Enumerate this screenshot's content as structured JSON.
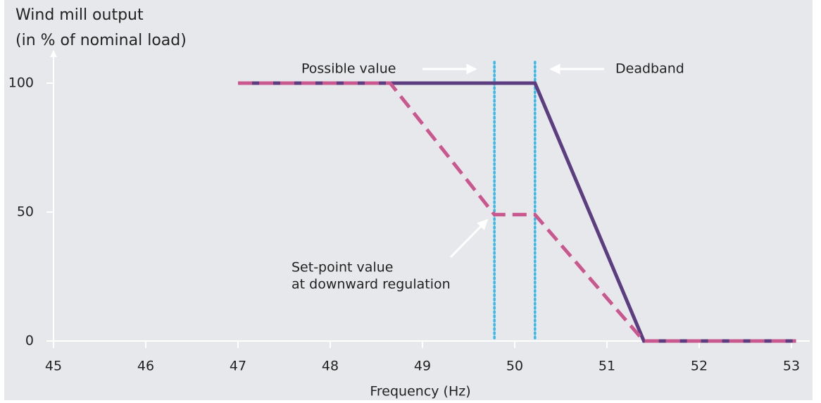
{
  "chart_data": {
    "type": "line",
    "y_label": [
      "Wind mill output",
      "(in % of nominal load)"
    ],
    "x_label": "Frequency (Hz)",
    "xlim": [
      45,
      53
    ],
    "xticks": [
      45,
      46,
      47,
      48,
      49,
      50,
      51,
      52,
      53
    ],
    "ylim": [
      0,
      100
    ],
    "yticks": [
      0,
      50,
      100
    ],
    "series": [
      {
        "name": "Possible value",
        "color": "#5c3d80",
        "style": "solid",
        "x": [
          47,
          50.22,
          51.4,
          53.05
        ],
        "values": [
          100,
          100,
          0,
          0
        ]
      },
      {
        "name": "Set-point value at downward regulation",
        "color": "#c9588f",
        "style": "dashed",
        "x": [
          47,
          48.65,
          49.78,
          50.22,
          51.4,
          53.05
        ],
        "values": [
          100,
          100,
          49,
          49,
          0,
          0
        ]
      }
    ],
    "deadband": {
      "color": "#3ab8e6",
      "x": [
        49.78,
        50.22
      ]
    },
    "annotations": [
      "Possible value",
      "Deadband",
      "Set-point value",
      "at downward regulation"
    ]
  }
}
